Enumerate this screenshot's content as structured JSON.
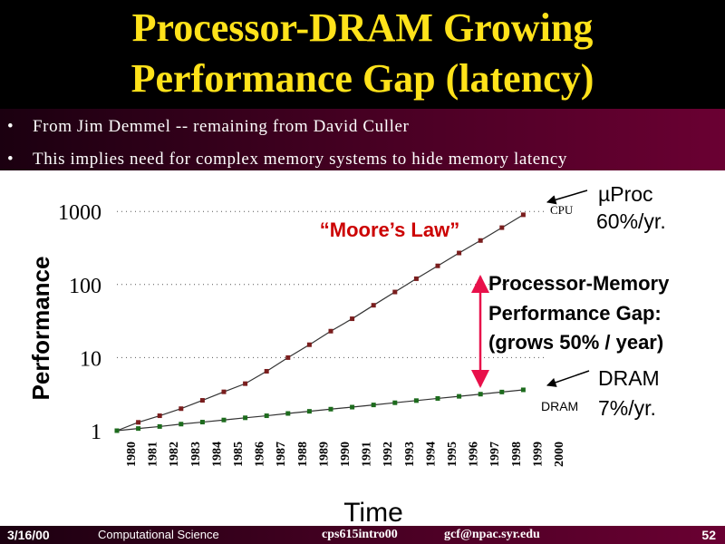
{
  "slide": {
    "title_line_1": "Processor-DRAM Growing",
    "title_line_2": "Performance Gap (latency)",
    "bullets": [
      "From Jim Demmel -- remaining from David Culler",
      "This implies need for complex memory systems to hide memory latency"
    ],
    "bullet_marker": "•"
  },
  "footer": {
    "date": "3/16/00",
    "course": "Computational Science",
    "code": "cps615intro00",
    "email": "gcf@npac.syr.edu",
    "page": "52"
  },
  "chart_data": {
    "type": "line",
    "x_label": "Time",
    "y_label": "Performance",
    "y_scale": "log",
    "y_ticks": [
      1,
      10,
      100,
      1000
    ],
    "y_tick_labels": [
      "1",
      "10",
      "100",
      "1000"
    ],
    "x_categories": [
      "1980",
      "1981",
      "1982",
      "1983",
      "1984",
      "1985",
      "1986",
      "1987",
      "1988",
      "1989",
      "1990",
      "1991",
      "1992",
      "1993",
      "1994",
      "1995",
      "1996",
      "1997",
      "1998",
      "1999",
      "2000"
    ],
    "grid": "dotted horizontal at 10, 100 and 1000",
    "series": [
      {
        "name": "CPU",
        "color": "#7a1e1e",
        "x": [
          "1980",
          "1981",
          "1982",
          "1983",
          "1984",
          "1985",
          "1986",
          "1987",
          "1988",
          "1989",
          "1990",
          "1991",
          "1992",
          "1993",
          "1994",
          "1995",
          "1996",
          "1997",
          "1998",
          "1999",
          "2000"
        ],
        "values": [
          1,
          1.3,
          1.6,
          2,
          2.6,
          3.4,
          4.4,
          6.5,
          10,
          15,
          23,
          34,
          52,
          79,
          120,
          180,
          270,
          400,
          600,
          900,
          null
        ]
      },
      {
        "name": "DRAM",
        "color": "#1d6b1d",
        "x": [
          "1980",
          "1981",
          "1982",
          "1983",
          "1984",
          "1985",
          "1986",
          "1987",
          "1988",
          "1989",
          "1990",
          "1991",
          "1992",
          "1993",
          "1994",
          "1995",
          "1996",
          "1997",
          "1998",
          "1999",
          "2000"
        ],
        "values": [
          1,
          1.07,
          1.14,
          1.23,
          1.31,
          1.4,
          1.5,
          1.6,
          1.72,
          1.84,
          1.97,
          2.1,
          2.25,
          2.41,
          2.58,
          2.76,
          2.95,
          3.16,
          3.38,
          3.62,
          null
        ]
      }
    ],
    "annotations": {
      "moores_law": "“Moore’s Law”",
      "cpu_label": "CPU",
      "cpu_rate_1": "µProc",
      "cpu_rate_2": "60%/yr.",
      "dram_label": "DRAM",
      "dram_rate_1": "DRAM",
      "dram_rate_2": "7%/yr.",
      "gap_line_1": "Processor-Memory",
      "gap_line_2": "Performance Gap:",
      "gap_line_3": "(grows 50% / year)"
    },
    "colors": {
      "moores_law": "#cc0000",
      "gap_arrow": "#e8104a"
    }
  }
}
